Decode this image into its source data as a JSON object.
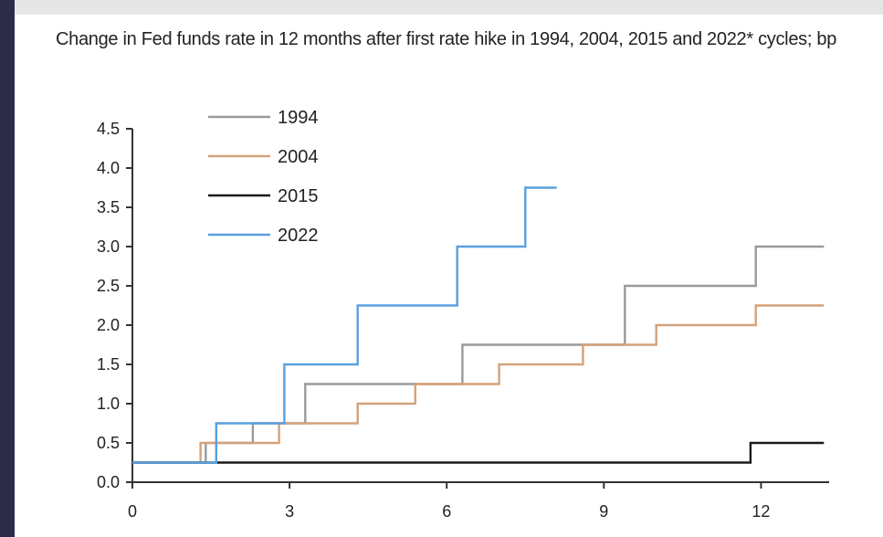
{
  "chart_data": {
    "type": "line",
    "title": "Change in Fed funds rate in 12 months after first rate hike in 1994, 2004, 2015 and 2022* cycles; bp",
    "xlabel": "",
    "ylabel": "",
    "xlim": [
      0,
      13.3
    ],
    "ylim": [
      0,
      4.5
    ],
    "xticks": [
      0,
      3,
      6,
      9,
      12
    ],
    "yticks": [
      "0.0",
      "0.5",
      "1.0",
      "1.5",
      "2.0",
      "2.5",
      "3.0",
      "3.5",
      "4.0",
      "4.5"
    ],
    "legend_position": "top-left",
    "grid": false,
    "series": [
      {
        "name": "1994",
        "color": "#9a9a9a",
        "step": true,
        "points": [
          [
            0,
            0.25
          ],
          [
            1.4,
            0.25
          ],
          [
            1.4,
            0.5
          ],
          [
            2.3,
            0.5
          ],
          [
            2.3,
            0.75
          ],
          [
            3.3,
            0.75
          ],
          [
            3.3,
            1.25
          ],
          [
            6.3,
            1.25
          ],
          [
            6.3,
            1.75
          ],
          [
            9.4,
            1.75
          ],
          [
            9.4,
            2.5
          ],
          [
            11.9,
            2.5
          ],
          [
            11.9,
            3.0
          ],
          [
            13.2,
            3.0
          ]
        ]
      },
      {
        "name": "2004",
        "color": "#d4a27a",
        "step": true,
        "points": [
          [
            0,
            0.25
          ],
          [
            1.3,
            0.25
          ],
          [
            1.3,
            0.5
          ],
          [
            2.8,
            0.5
          ],
          [
            2.8,
            0.75
          ],
          [
            4.3,
            0.75
          ],
          [
            4.3,
            1.0
          ],
          [
            5.4,
            1.0
          ],
          [
            5.4,
            1.25
          ],
          [
            7.0,
            1.25
          ],
          [
            7.0,
            1.5
          ],
          [
            8.6,
            1.5
          ],
          [
            8.6,
            1.75
          ],
          [
            10.0,
            1.75
          ],
          [
            10.0,
            2.0
          ],
          [
            11.9,
            2.0
          ],
          [
            11.9,
            2.25
          ],
          [
            13.2,
            2.25
          ]
        ]
      },
      {
        "name": "2015",
        "color": "#1a1a1a",
        "step": true,
        "points": [
          [
            0,
            0.25
          ],
          [
            11.8,
            0.25
          ],
          [
            11.8,
            0.5
          ],
          [
            13.2,
            0.5
          ]
        ]
      },
      {
        "name": "2022",
        "color": "#5a9fe0",
        "step": true,
        "points": [
          [
            0,
            0.25
          ],
          [
            1.6,
            0.25
          ],
          [
            1.6,
            0.75
          ],
          [
            2.9,
            0.75
          ],
          [
            2.9,
            1.5
          ],
          [
            4.3,
            1.5
          ],
          [
            4.3,
            2.25
          ],
          [
            6.2,
            2.25
          ],
          [
            6.2,
            3.0
          ],
          [
            7.5,
            3.0
          ],
          [
            7.5,
            3.75
          ],
          [
            8.1,
            3.75
          ]
        ]
      }
    ]
  }
}
